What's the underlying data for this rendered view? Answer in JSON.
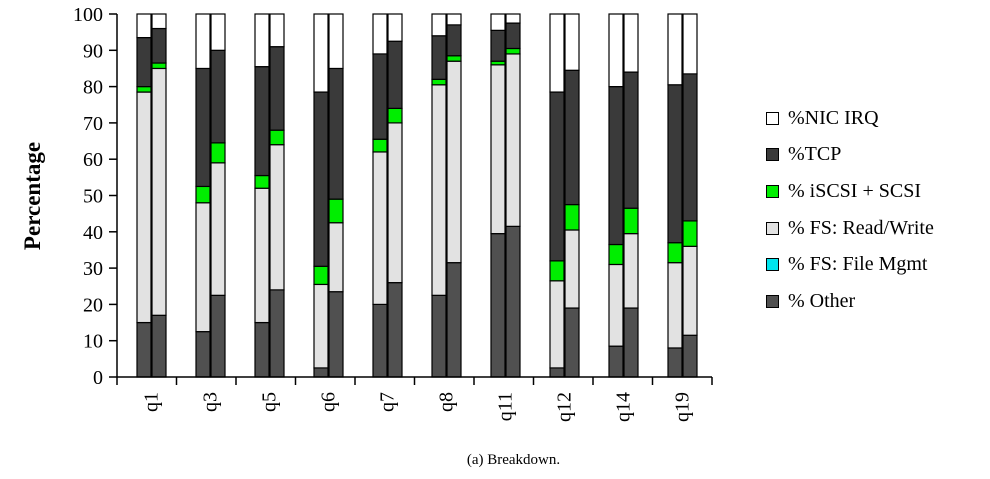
{
  "chart_data": {
    "type": "bar",
    "stacked": true,
    "ylabel": "Percentage",
    "ylim": [
      0,
      100
    ],
    "yticks": [
      0,
      10,
      20,
      30,
      40,
      50,
      60,
      70,
      80,
      90,
      100
    ],
    "categories": [
      "q1",
      "q3",
      "q5",
      "q6",
      "q7",
      "q8",
      "q11",
      "q12",
      "q14",
      "q19"
    ],
    "bars_per_category": 2,
    "series": [
      {
        "name": "% Other",
        "color": "#505050",
        "values": [
          [
            15,
            17
          ],
          [
            12.5,
            22.5
          ],
          [
            15,
            24
          ],
          [
            2.5,
            23.5
          ],
          [
            20,
            26
          ],
          [
            22.5,
            31.5
          ],
          [
            39.5,
            41.5
          ],
          [
            2.5,
            19
          ],
          [
            8.5,
            19
          ],
          [
            8,
            11.5
          ]
        ]
      },
      {
        "name": "% FS: File Mgmt",
        "color": "#00e5ee",
        "values": [
          [
            0,
            0
          ],
          [
            0,
            0
          ],
          [
            0,
            0
          ],
          [
            0,
            0
          ],
          [
            0,
            0
          ],
          [
            0,
            0
          ],
          [
            0,
            0
          ],
          [
            0,
            0
          ],
          [
            0,
            0
          ],
          [
            0,
            0
          ]
        ]
      },
      {
        "name": "% FS: Read/Write",
        "color": "#e2e2e2",
        "values": [
          [
            63.5,
            68
          ],
          [
            35.5,
            36.5
          ],
          [
            37,
            40
          ],
          [
            23,
            19
          ],
          [
            42,
            44
          ],
          [
            58,
            55.5
          ],
          [
            46.5,
            47.5
          ],
          [
            24,
            21.5
          ],
          [
            22.5,
            20.5
          ],
          [
            23.5,
            24.5
          ]
        ]
      },
      {
        "name": "% iSCSI + SCSI",
        "color": "#00ee00",
        "values": [
          [
            1.5,
            1.5
          ],
          [
            4.5,
            5.5
          ],
          [
            3.5,
            4
          ],
          [
            5,
            6.5
          ],
          [
            3.5,
            4
          ],
          [
            1.5,
            1.5
          ],
          [
            1,
            1.5
          ],
          [
            5.5,
            7
          ],
          [
            5.5,
            7
          ],
          [
            5.5,
            7
          ]
        ]
      },
      {
        "name": "%TCP",
        "color": "#3a3a3a",
        "values": [
          [
            13.5,
            9.5
          ],
          [
            32.5,
            25.5
          ],
          [
            30,
            23
          ],
          [
            48,
            36
          ],
          [
            23.5,
            18.5
          ],
          [
            12,
            8.5
          ],
          [
            8.5,
            7
          ],
          [
            46.5,
            37
          ],
          [
            43.5,
            37.5
          ],
          [
            43.5,
            40.5
          ]
        ]
      },
      {
        "name": "%NIC IRQ",
        "color": "#ffffff",
        "values": [
          [
            6.5,
            4
          ],
          [
            15,
            10
          ],
          [
            14.5,
            9
          ],
          [
            21.5,
            15
          ],
          [
            11,
            7.5
          ],
          [
            6,
            3
          ],
          [
            4.5,
            2.5
          ],
          [
            21.5,
            15.5
          ],
          [
            20,
            16
          ],
          [
            19.5,
            16.5
          ]
        ]
      }
    ],
    "legend_position": "right",
    "legend_order": [
      "%NIC IRQ",
      "%TCP",
      "% iSCSI + SCSI",
      "% FS: Read/Write",
      "% FS: File Mgmt",
      "% Other"
    ],
    "grid": false
  },
  "caption": "(a)  Breakdown."
}
